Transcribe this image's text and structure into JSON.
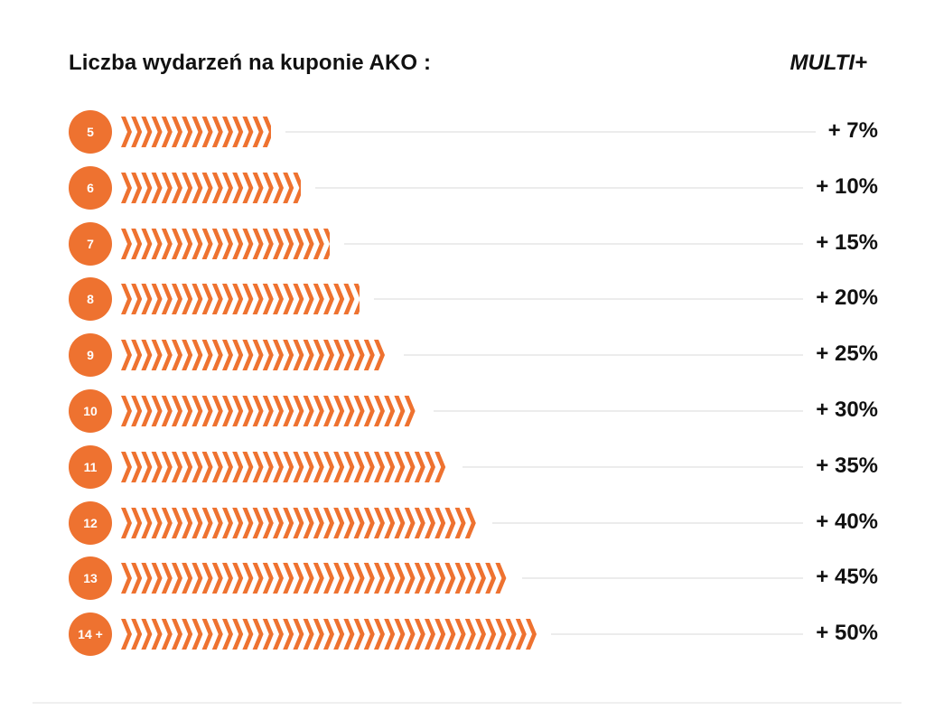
{
  "header": {
    "title": "Liczba wydarzeń na kuponie AKO :",
    "column_label": "MULTI+"
  },
  "colors": {
    "accent": "#ee7230",
    "guide_line": "#ececec",
    "text": "#111111"
  },
  "chart_data": {
    "type": "bar",
    "orientation": "horizontal",
    "title": "Liczba wydarzeń na kuponie AKO :",
    "value_header": "MULTI+",
    "unit": "%",
    "categories": [
      "5",
      "6",
      "7",
      "8",
      "9",
      "10",
      "11",
      "12",
      "13",
      "14 +"
    ],
    "values": [
      7,
      10,
      15,
      20,
      25,
      30,
      35,
      40,
      45,
      50
    ],
    "value_labels": [
      "+ 7%",
      "+ 10%",
      "+ 15%",
      "+ 20%",
      "+ 25%",
      "+ 30%",
      "+ 35%",
      "+ 40%",
      "+ 45%",
      "+ 50%"
    ],
    "grid": false,
    "legend": "none"
  }
}
